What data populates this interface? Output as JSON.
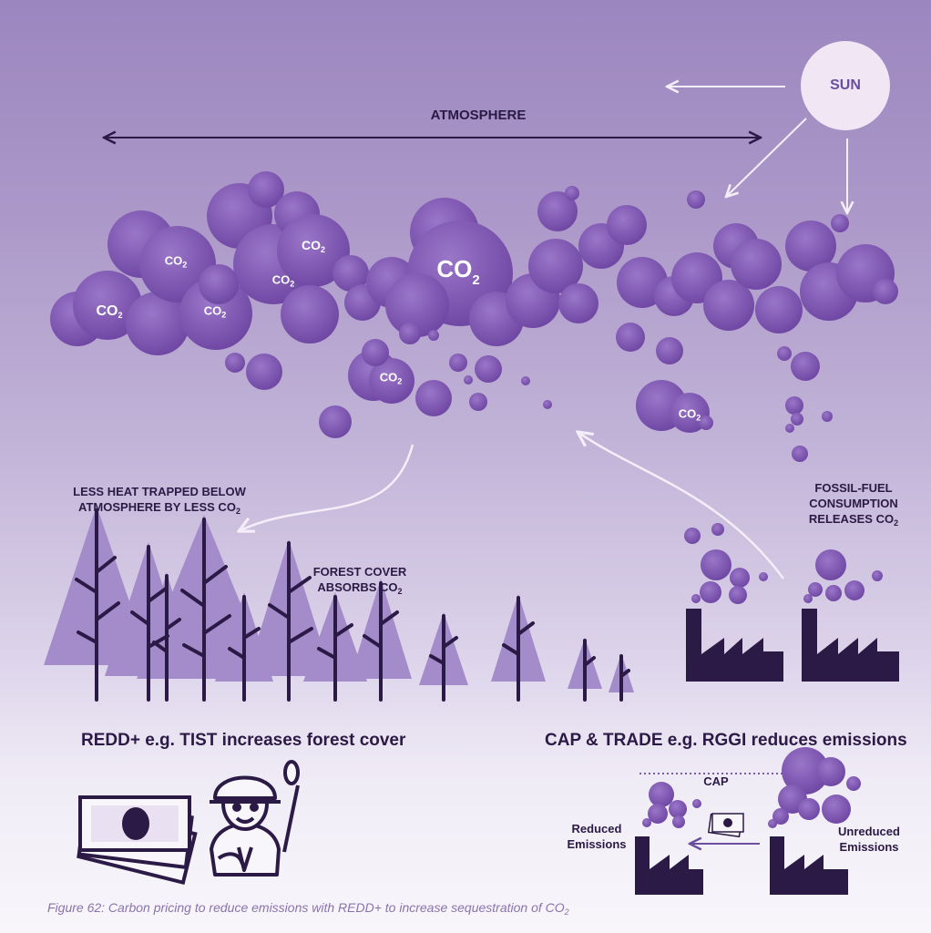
{
  "labels": {
    "sun": "SUN",
    "atmosphere": "ATMOSPHERE",
    "co2": "CO",
    "co2_sub": "2",
    "less_heat_line1": "LESS HEAT TRAPPED BELOW",
    "less_heat_line2": "ATMOSPHERE BY LESS CO",
    "forest_line1": "FOREST COVER",
    "forest_line2": "ABSORBS CO",
    "fossil_line1": "FOSSIL-FUEL",
    "fossil_line2": "CONSUMPTION",
    "fossil_line3": "RELEASES CO",
    "redd_heading": "REDD+ e.g. TIST increases forest cover",
    "cap_heading": "CAP & TRADE e.g. RGGI reduces emissions",
    "cap": "CAP",
    "reduced_line1": "Reduced",
    "reduced_line2": "Emissions",
    "unreduced_line1": "Unreduced",
    "unreduced_line2": "Emissions",
    "caption": "Figure 62: Carbon pricing to reduce emissions with REDD+ to increase sequestration of CO",
    "caption_sub": "2"
  },
  "colors": {
    "cloud_purple": "#7a52ad",
    "tree_light": "#a48bc9",
    "trunk_dark": "#2b1a45",
    "factory_dark": "#2b1a45",
    "sun_fill": "#f0e6f4",
    "text_dark": "#2b1a45",
    "caption_purple": "#8a73ad"
  },
  "icons": [
    "sun-icon",
    "cloud-icon",
    "tree-icon",
    "factory-icon",
    "banknote-icon",
    "farmer-icon",
    "arrow-icon"
  ]
}
